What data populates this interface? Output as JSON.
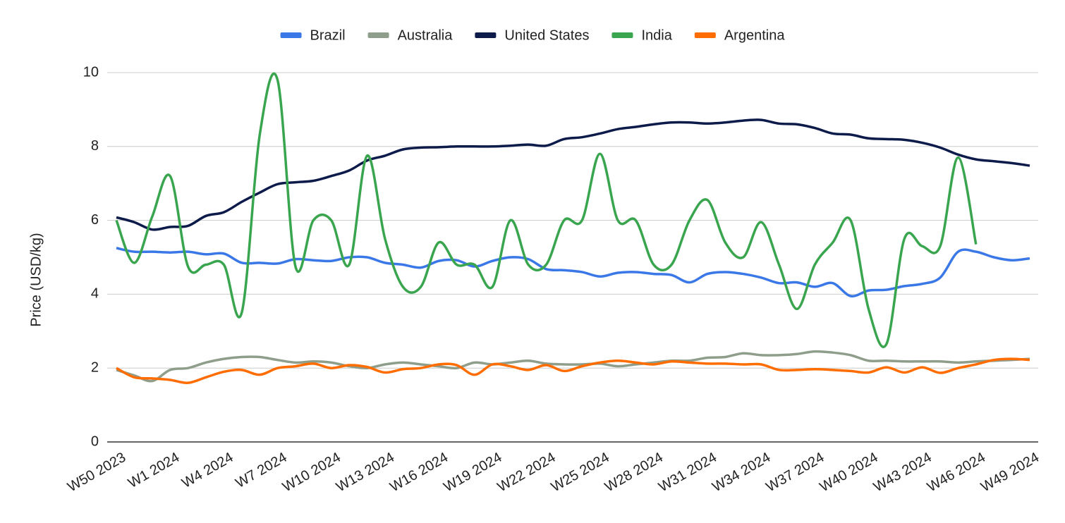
{
  "chart_data": {
    "type": "line",
    "ylabel": "Price (USD/kg)",
    "categories": [
      "W50 2023",
      null,
      null,
      "W1 2024",
      null,
      null,
      "W4 2024",
      null,
      null,
      "W7 2024",
      null,
      null,
      "W10 2024",
      null,
      null,
      "W13 2024",
      null,
      null,
      "W16 2024",
      null,
      null,
      "W19 2024",
      null,
      null,
      "W22 2024",
      null,
      null,
      "W25 2024",
      null,
      null,
      "W28 2024",
      null,
      null,
      "W31 2024",
      null,
      null,
      "W34 2024",
      null,
      null,
      "W37 2024",
      null,
      null,
      "W40 2024",
      null,
      null,
      "W43 2024",
      null,
      null,
      "W46 2024",
      null,
      null,
      "W49 2024"
    ],
    "series": [
      {
        "name": "Brazil",
        "color": "#3b78e7",
        "values": [
          5.25,
          5.15,
          5.15,
          5.13,
          5.15,
          5.08,
          5.1,
          4.85,
          4.85,
          4.83,
          4.95,
          4.92,
          4.9,
          5.0,
          5.0,
          4.85,
          4.8,
          4.72,
          4.9,
          4.92,
          4.75,
          4.9,
          5.0,
          4.95,
          4.68,
          4.65,
          4.6,
          4.48,
          4.58,
          4.6,
          4.55,
          4.52,
          4.32,
          4.55,
          4.6,
          4.55,
          4.45,
          4.3,
          4.32,
          4.2,
          4.3,
          3.95,
          4.1,
          4.12,
          4.22,
          4.28,
          4.45,
          5.15,
          5.15,
          5.0,
          4.92,
          4.97
        ]
      },
      {
        "name": "Australia",
        "color": "#8f9e8b",
        "values": [
          1.95,
          1.8,
          1.65,
          1.95,
          2.0,
          2.15,
          2.25,
          2.3,
          2.3,
          2.22,
          2.15,
          2.18,
          2.15,
          2.05,
          2.0,
          2.1,
          2.15,
          2.1,
          2.05,
          2.0,
          2.15,
          2.1,
          2.15,
          2.2,
          2.12,
          2.1,
          2.1,
          2.12,
          2.05,
          2.1,
          2.15,
          2.2,
          2.2,
          2.28,
          2.3,
          2.4,
          2.35,
          2.35,
          2.38,
          2.45,
          2.42,
          2.35,
          2.2,
          2.2,
          2.18,
          2.18,
          2.18,
          2.15,
          2.18,
          2.2,
          2.22,
          2.25
        ]
      },
      {
        "name": "United States",
        "color": "#0d1b4b",
        "values": [
          6.08,
          5.95,
          5.75,
          5.82,
          5.85,
          6.12,
          6.22,
          6.5,
          6.75,
          6.98,
          7.03,
          7.07,
          7.2,
          7.35,
          7.62,
          7.75,
          7.92,
          7.97,
          7.98,
          8.0,
          8.0,
          8.0,
          8.02,
          8.05,
          8.02,
          8.2,
          8.25,
          8.35,
          8.47,
          8.53,
          8.6,
          8.65,
          8.65,
          8.62,
          8.65,
          8.7,
          8.72,
          8.62,
          8.6,
          8.5,
          8.35,
          8.32,
          8.22,
          8.2,
          8.18,
          8.1,
          7.97,
          7.78,
          7.65,
          7.6,
          7.55,
          7.48
        ]
      },
      {
        "name": "India",
        "color": "#3aa54f",
        "values": [
          6.0,
          4.85,
          6.1,
          7.2,
          4.75,
          4.8,
          4.8,
          3.5,
          8.3,
          9.8,
          4.75,
          6.0,
          6.0,
          4.8,
          7.75,
          5.5,
          4.2,
          4.2,
          5.4,
          4.8,
          4.8,
          4.2,
          6.0,
          4.8,
          4.8,
          6.0,
          6.0,
          7.8,
          6.0,
          6.0,
          4.8,
          4.8,
          6.0,
          6.55,
          5.4,
          5.0,
          5.95,
          4.8,
          3.6,
          4.8,
          5.4,
          6.0,
          3.6,
          2.65,
          5.5,
          5.3,
          5.3,
          7.7,
          5.35,
          null,
          null,
          null
        ]
      },
      {
        "name": "Argentina",
        "color": "#ff6d01",
        "values": [
          2.0,
          1.75,
          1.72,
          1.68,
          1.6,
          1.75,
          1.9,
          1.95,
          1.82,
          2.0,
          2.05,
          2.12,
          2.0,
          2.08,
          2.03,
          1.88,
          1.97,
          2.0,
          2.1,
          2.08,
          1.82,
          2.1,
          2.05,
          1.95,
          2.08,
          1.92,
          2.05,
          2.15,
          2.2,
          2.15,
          2.1,
          2.18,
          2.15,
          2.12,
          2.12,
          2.1,
          2.1,
          1.95,
          1.95,
          1.97,
          1.95,
          1.92,
          1.88,
          2.02,
          1.88,
          2.02,
          1.87,
          2.0,
          2.1,
          2.22,
          2.25,
          2.22
        ]
      }
    ],
    "ylim": [
      0,
      10
    ],
    "yticks": [
      0,
      2,
      4,
      6,
      8,
      10
    ],
    "grid": true,
    "legend": "top"
  }
}
